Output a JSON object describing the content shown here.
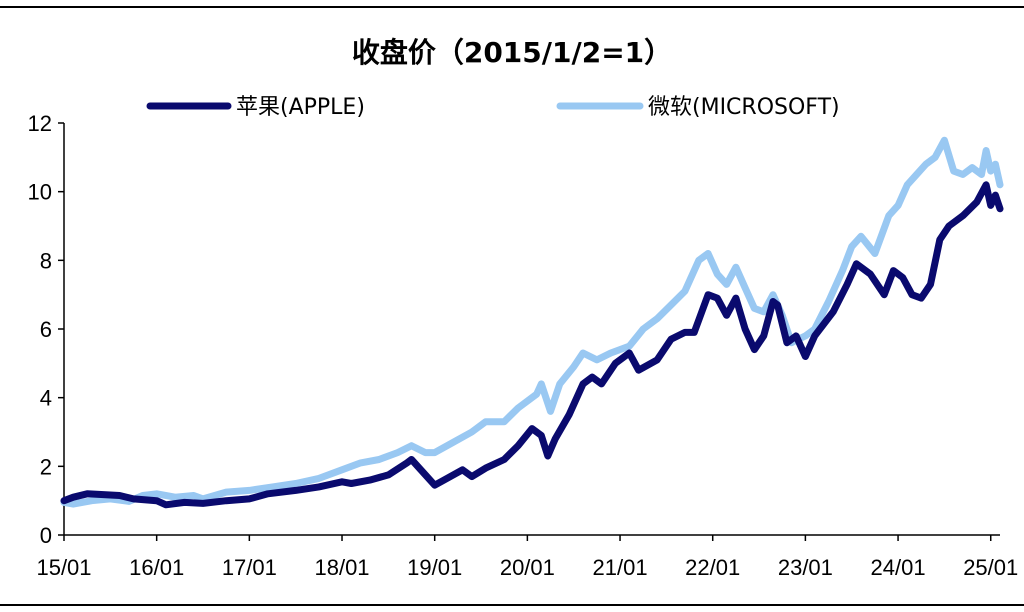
{
  "chart_data": {
    "type": "line",
    "title": "收盘价（2015/1/2=1）",
    "xlabel": "",
    "ylabel": "",
    "ylim": [
      0,
      12
    ],
    "yticks": [
      "0",
      "2",
      "4",
      "6",
      "8",
      "10",
      "12"
    ],
    "xticks": [
      "15/01",
      "16/01",
      "17/01",
      "18/01",
      "19/01",
      "20/01",
      "21/01",
      "22/01",
      "23/01",
      "24/01",
      "25/01"
    ],
    "xlim": [
      2015.0,
      2025.1
    ],
    "legend_position": "top",
    "grid": false,
    "series": [
      {
        "name": "苹果(APPLE)",
        "color": "#0a0a6e",
        "points": [
          [
            2015.0,
            1.0
          ],
          [
            2015.1,
            1.1
          ],
          [
            2015.25,
            1.2
          ],
          [
            2015.4,
            1.18
          ],
          [
            2015.6,
            1.15
          ],
          [
            2015.75,
            1.05
          ],
          [
            2016.0,
            1.0
          ],
          [
            2016.1,
            0.88
          ],
          [
            2016.3,
            0.95
          ],
          [
            2016.5,
            0.92
          ],
          [
            2016.75,
            1.0
          ],
          [
            2017.0,
            1.05
          ],
          [
            2017.2,
            1.2
          ],
          [
            2017.5,
            1.3
          ],
          [
            2017.75,
            1.4
          ],
          [
            2018.0,
            1.55
          ],
          [
            2018.1,
            1.5
          ],
          [
            2018.3,
            1.6
          ],
          [
            2018.5,
            1.75
          ],
          [
            2018.7,
            2.1
          ],
          [
            2018.75,
            2.2
          ],
          [
            2018.9,
            1.75
          ],
          [
            2019.0,
            1.45
          ],
          [
            2019.1,
            1.6
          ],
          [
            2019.3,
            1.9
          ],
          [
            2019.4,
            1.7
          ],
          [
            2019.55,
            1.95
          ],
          [
            2019.75,
            2.2
          ],
          [
            2019.9,
            2.6
          ],
          [
            2020.05,
            3.1
          ],
          [
            2020.15,
            2.9
          ],
          [
            2020.22,
            2.3
          ],
          [
            2020.3,
            2.8
          ],
          [
            2020.45,
            3.5
          ],
          [
            2020.6,
            4.4
          ],
          [
            2020.7,
            4.6
          ],
          [
            2020.8,
            4.4
          ],
          [
            2020.95,
            5.0
          ],
          [
            2021.1,
            5.3
          ],
          [
            2021.2,
            4.8
          ],
          [
            2021.4,
            5.1
          ],
          [
            2021.55,
            5.7
          ],
          [
            2021.7,
            5.9
          ],
          [
            2021.8,
            5.9
          ],
          [
            2021.95,
            7.0
          ],
          [
            2022.05,
            6.9
          ],
          [
            2022.15,
            6.4
          ],
          [
            2022.25,
            6.9
          ],
          [
            2022.35,
            6.0
          ],
          [
            2022.45,
            5.4
          ],
          [
            2022.55,
            5.8
          ],
          [
            2022.65,
            6.8
          ],
          [
            2022.7,
            6.7
          ],
          [
            2022.8,
            5.6
          ],
          [
            2022.9,
            5.8
          ],
          [
            2023.0,
            5.2
          ],
          [
            2023.1,
            5.8
          ],
          [
            2023.3,
            6.5
          ],
          [
            2023.45,
            7.3
          ],
          [
            2023.55,
            7.9
          ],
          [
            2023.7,
            7.6
          ],
          [
            2023.85,
            7.0
          ],
          [
            2023.95,
            7.7
          ],
          [
            2024.05,
            7.5
          ],
          [
            2024.15,
            7.0
          ],
          [
            2024.25,
            6.9
          ],
          [
            2024.35,
            7.3
          ],
          [
            2024.45,
            8.6
          ],
          [
            2024.55,
            9.0
          ],
          [
            2024.7,
            9.3
          ],
          [
            2024.85,
            9.7
          ],
          [
            2024.95,
            10.2
          ],
          [
            2025.0,
            9.6
          ],
          [
            2025.05,
            9.9
          ],
          [
            2025.1,
            9.5
          ]
        ]
      },
      {
        "name": "微软(MICROSOFT)",
        "color": "#99c8f2",
        "points": [
          [
            2015.0,
            0.95
          ],
          [
            2015.1,
            0.9
          ],
          [
            2015.3,
            1.0
          ],
          [
            2015.5,
            1.05
          ],
          [
            2015.7,
            0.98
          ],
          [
            2015.85,
            1.15
          ],
          [
            2016.0,
            1.2
          ],
          [
            2016.2,
            1.1
          ],
          [
            2016.4,
            1.15
          ],
          [
            2016.5,
            1.05
          ],
          [
            2016.75,
            1.25
          ],
          [
            2017.0,
            1.3
          ],
          [
            2017.25,
            1.4
          ],
          [
            2017.5,
            1.5
          ],
          [
            2017.75,
            1.65
          ],
          [
            2018.0,
            1.9
          ],
          [
            2018.2,
            2.1
          ],
          [
            2018.4,
            2.2
          ],
          [
            2018.6,
            2.4
          ],
          [
            2018.75,
            2.6
          ],
          [
            2018.9,
            2.4
          ],
          [
            2019.0,
            2.4
          ],
          [
            2019.2,
            2.7
          ],
          [
            2019.4,
            3.0
          ],
          [
            2019.55,
            3.3
          ],
          [
            2019.75,
            3.3
          ],
          [
            2019.9,
            3.7
          ],
          [
            2020.1,
            4.1
          ],
          [
            2020.15,
            4.4
          ],
          [
            2020.25,
            3.6
          ],
          [
            2020.35,
            4.4
          ],
          [
            2020.5,
            4.9
          ],
          [
            2020.6,
            5.3
          ],
          [
            2020.75,
            5.1
          ],
          [
            2020.9,
            5.3
          ],
          [
            2021.1,
            5.5
          ],
          [
            2021.25,
            6.0
          ],
          [
            2021.4,
            6.3
          ],
          [
            2021.55,
            6.7
          ],
          [
            2021.7,
            7.1
          ],
          [
            2021.85,
            8.0
          ],
          [
            2021.95,
            8.2
          ],
          [
            2022.05,
            7.6
          ],
          [
            2022.15,
            7.3
          ],
          [
            2022.25,
            7.8
          ],
          [
            2022.35,
            7.2
          ],
          [
            2022.45,
            6.6
          ],
          [
            2022.55,
            6.5
          ],
          [
            2022.65,
            7.0
          ],
          [
            2022.75,
            6.4
          ],
          [
            2022.85,
            5.6
          ],
          [
            2023.0,
            5.8
          ],
          [
            2023.1,
            6.0
          ],
          [
            2023.25,
            6.8
          ],
          [
            2023.4,
            7.7
          ],
          [
            2023.5,
            8.4
          ],
          [
            2023.6,
            8.7
          ],
          [
            2023.75,
            8.2
          ],
          [
            2023.9,
            9.3
          ],
          [
            2024.0,
            9.6
          ],
          [
            2024.1,
            10.2
          ],
          [
            2024.2,
            10.5
          ],
          [
            2024.3,
            10.8
          ],
          [
            2024.4,
            11.0
          ],
          [
            2024.5,
            11.5
          ],
          [
            2024.6,
            10.6
          ],
          [
            2024.7,
            10.5
          ],
          [
            2024.8,
            10.7
          ],
          [
            2024.9,
            10.5
          ],
          [
            2024.95,
            11.2
          ],
          [
            2025.0,
            10.6
          ],
          [
            2025.05,
            10.8
          ],
          [
            2025.1,
            10.2
          ]
        ]
      }
    ]
  }
}
